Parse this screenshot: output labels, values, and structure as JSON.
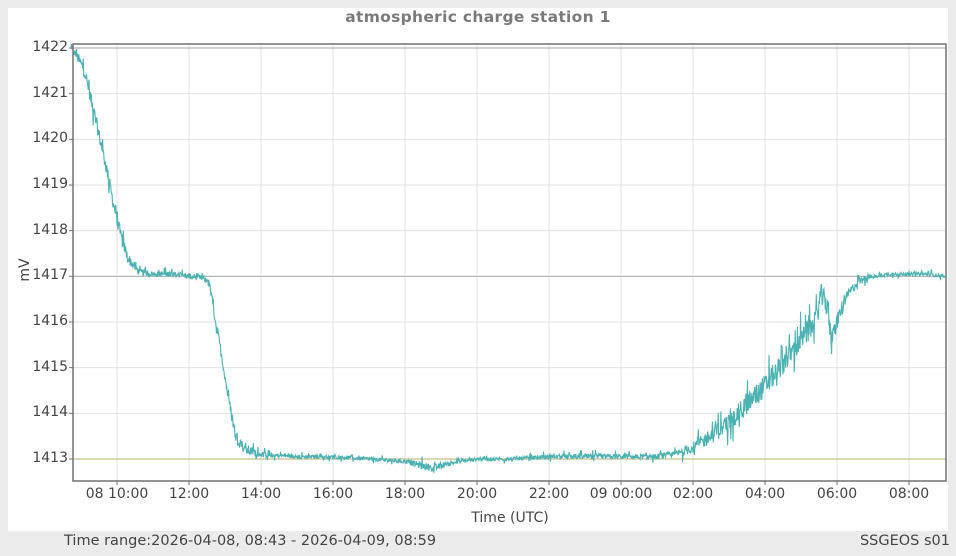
{
  "window": {
    "title": "atmospheric charge station 1",
    "footer_left": "Time range:2026-04-08, 08:43 - 2026-04-09, 08:59",
    "footer_right": "SSGEOS s01"
  },
  "colors": {
    "background": "#ebebeb",
    "panel": "#ffffff",
    "series": "#4cb1b1",
    "grid": "#e2e2e2",
    "axis": "#707070",
    "ref_line_upper": "#b4b4b4",
    "ref_line_lower": "#c8c08a"
  },
  "chart_data": {
    "type": "line",
    "title": "atmospheric charge station 1",
    "xlabel": "Time (UTC)",
    "ylabel": "mV",
    "ylim": [
      1412.55,
      1422.1
    ],
    "y_ticks": [
      1413,
      1414,
      1415,
      1416,
      1417,
      1418,
      1419,
      1420,
      1421,
      1422
    ],
    "x_range_hours": [
      8.7,
      33.0
    ],
    "x_ticks": [
      {
        "hour": 10,
        "label": "08 10:00"
      },
      {
        "hour": 12,
        "label": "12:00"
      },
      {
        "hour": 14,
        "label": "14:00"
      },
      {
        "hour": 16,
        "label": "16:00"
      },
      {
        "hour": 18,
        "label": "18:00"
      },
      {
        "hour": 20,
        "label": "20:00"
      },
      {
        "hour": 22,
        "label": "22:00"
      },
      {
        "hour": 24,
        "label": "09 00:00"
      },
      {
        "hour": 26,
        "label": "02:00"
      },
      {
        "hour": 28,
        "label": "04:00"
      },
      {
        "hour": 30,
        "label": "06:00"
      },
      {
        "hour": 32,
        "label": "08:00"
      }
    ],
    "reference_lines": [
      {
        "value": 1422,
        "color": "#b4b4b4"
      },
      {
        "value": 1417,
        "color": "#b4b4b4"
      },
      {
        "value": 1413,
        "color": "#c8c08a"
      }
    ],
    "grid": true,
    "legend": null,
    "series": [
      {
        "name": "atmospheric charge station 1",
        "x_hours": [
          8.72,
          8.9,
          9.1,
          9.3,
          9.5,
          9.7,
          9.9,
          10.1,
          10.3,
          10.6,
          11.0,
          11.5,
          12.0,
          12.4,
          12.55,
          12.7,
          12.9,
          13.1,
          13.3,
          13.6,
          14.0,
          15.0,
          16.0,
          17.0,
          18.0,
          18.5,
          18.8,
          19.2,
          20.0,
          21.0,
          22.0,
          23.0,
          24.0,
          25.0,
          25.5,
          26.0,
          26.5,
          27.0,
          27.5,
          28.0,
          28.5,
          29.0,
          29.4,
          29.55,
          29.7,
          29.85,
          30.0,
          30.3,
          30.6,
          31.0,
          31.5,
          32.0,
          32.5,
          33.0
        ],
        "values": [
          1422.0,
          1421.8,
          1421.5,
          1420.8,
          1420.1,
          1419.4,
          1418.6,
          1417.9,
          1417.4,
          1417.1,
          1417.05,
          1417.05,
          1417.0,
          1416.95,
          1416.9,
          1416.2,
          1415.3,
          1414.3,
          1413.5,
          1413.2,
          1413.1,
          1413.05,
          1413.05,
          1413.0,
          1412.95,
          1412.85,
          1412.8,
          1412.9,
          1413.0,
          1413.0,
          1413.05,
          1413.05,
          1413.05,
          1413.05,
          1413.1,
          1413.25,
          1413.5,
          1413.8,
          1414.2,
          1414.6,
          1415.1,
          1415.6,
          1416.0,
          1416.6,
          1416.4,
          1415.6,
          1416.0,
          1416.6,
          1416.9,
          1417.0,
          1417.05,
          1417.05,
          1417.05,
          1417.0
        ],
        "noise_mV": [
          0.05,
          0.12,
          0.15,
          0.15,
          0.15,
          0.15,
          0.15,
          0.15,
          0.12,
          0.08,
          0.06,
          0.06,
          0.06,
          0.06,
          0.08,
          0.12,
          0.12,
          0.12,
          0.15,
          0.12,
          0.06,
          0.04,
          0.04,
          0.04,
          0.05,
          0.08,
          0.08,
          0.05,
          0.04,
          0.04,
          0.05,
          0.06,
          0.06,
          0.06,
          0.08,
          0.12,
          0.18,
          0.2,
          0.22,
          0.25,
          0.25,
          0.25,
          0.25,
          0.25,
          0.25,
          0.2,
          0.2,
          0.12,
          0.08,
          0.05,
          0.04,
          0.04,
          0.04,
          0.04
        ]
      }
    ]
  }
}
